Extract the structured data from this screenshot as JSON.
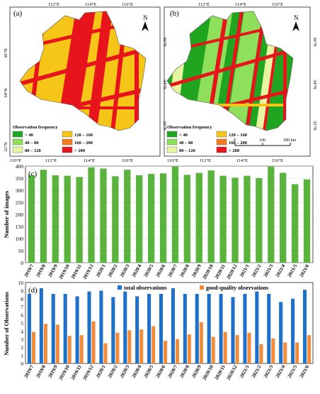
{
  "maps": {
    "coord_labels": {
      "lon_top": [
        "112°E",
        "114°E",
        "116°E"
      ],
      "lon_bottom": [
        "110°E",
        "112°E",
        "114°E",
        "116°E"
      ],
      "lat_left": [
        "36°N",
        "34°N",
        "32°N"
      ],
      "lat_right": [
        "36°N",
        "34°N",
        "32°N"
      ]
    },
    "north_label": "N",
    "panels": [
      {
        "label": "(a)",
        "legend_title": "Observation frequency",
        "legend": [
          {
            "label": "< 40",
            "color": "#1fa51f"
          },
          {
            "label": "120 – 160",
            "color": "#f5c518"
          },
          {
            "label": "40 – 80",
            "color": "#8ee05a"
          },
          {
            "label": "160 – 200",
            "color": "#f47b20"
          },
          {
            "label": "80 – 120",
            "color": "#e8f5a0"
          },
          {
            "label": "> 200",
            "color": "#e8141c"
          }
        ]
      },
      {
        "label": "(b)",
        "legend_title": "Observation frequency",
        "legend": [
          {
            "label": "< 40",
            "color": "#1fa51f"
          },
          {
            "label": "120 – 160",
            "color": "#f5c518"
          },
          {
            "label": "40 – 80",
            "color": "#8ee05a"
          },
          {
            "label": "160 – 200",
            "color": "#f47b20"
          },
          {
            "label": "80 – 120",
            "color": "#e8f5a0"
          },
          {
            "label": "> 200",
            "color": "#e8141c"
          }
        ],
        "scale_labels": [
          "0",
          "100",
          "200 km"
        ]
      }
    ]
  },
  "chart_data": [
    {
      "type": "bar",
      "panel_label": "(c)",
      "ylabel": "Number of images",
      "ylim": [
        0,
        400
      ],
      "yticks": [
        0,
        50,
        100,
        150,
        200,
        250,
        300,
        350,
        400
      ],
      "grid": true,
      "bar_color": "#5ab33d",
      "categories": [
        "2019/7",
        "2019/8",
        "2019/9",
        "2019/10",
        "2019/11",
        "2019/12",
        "2020/1",
        "2020/2",
        "2020/3",
        "2020/4",
        "2020/5",
        "2020/6",
        "2020/7",
        "2020/8",
        "2020/9",
        "2020/10",
        "2020/11",
        "2020/12",
        "2021/1",
        "2021/2",
        "2021/3",
        "2021/4",
        "2021/5",
        "2021/6"
      ],
      "values": [
        362,
        385,
        362,
        360,
        355,
        395,
        390,
        358,
        385,
        362,
        368,
        370,
        398,
        364,
        372,
        382,
        360,
        352,
        360,
        350,
        398,
        372,
        325,
        345
      ]
    },
    {
      "type": "bar",
      "panel_label": "(d)",
      "ylabel": "Number of Observations",
      "ylim": [
        0,
        10
      ],
      "yticks": [
        0,
        1,
        2,
        3,
        4,
        5,
        6,
        7,
        8,
        9,
        10
      ],
      "legend_position": "top",
      "categories": [
        "2019/7",
        "2019/8",
        "2019/9",
        "2019/10",
        "2019/11",
        "2019/12",
        "2020/1",
        "2020/2",
        "2020/3",
        "2020/4",
        "2020/5",
        "2020/6",
        "2020/7",
        "2020/8",
        "2020/9",
        "2020/10",
        "2020/11",
        "2020/12",
        "2021/1",
        "2021/2",
        "2021/3",
        "2021/4",
        "2021/5",
        "2021/6"
      ],
      "series": [
        {
          "name": "total observations",
          "color": "#1e70c8",
          "values": [
            8.6,
            9.3,
            8.6,
            8.6,
            8.3,
            8.9,
            9.0,
            8.2,
            8.9,
            8.3,
            8.6,
            8.6,
            9.3,
            8.6,
            8.6,
            8.6,
            8.6,
            8.2,
            8.6,
            8.9,
            8.6,
            7.6,
            8.0,
            9.1
          ]
        },
        {
          "name": "good-quality observations",
          "color": "#f08c3c",
          "values": [
            3.9,
            4.9,
            4.8,
            3.4,
            3.5,
            5.2,
            2.5,
            3.8,
            4.1,
            4.2,
            4.6,
            2.8,
            3.0,
            3.6,
            5.1,
            3.3,
            3.9,
            3.5,
            3.8,
            2.4,
            3.1,
            2.6,
            2.6,
            3.5
          ]
        }
      ]
    }
  ]
}
